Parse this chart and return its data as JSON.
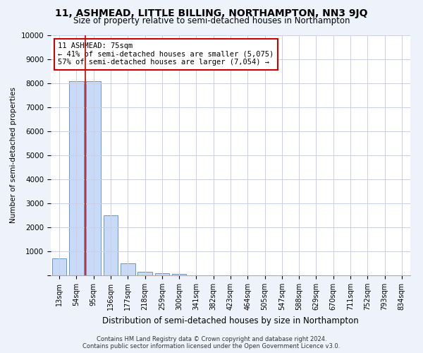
{
  "title": "11, ASHMEAD, LITTLE BILLING, NORTHAMPTON, NN3 9JQ",
  "subtitle": "Size of property relative to semi-detached houses in Northampton",
  "xlabel": "Distribution of semi-detached houses by size in Northampton",
  "ylabel": "Number of semi-detached properties",
  "categories": [
    "13sqm",
    "54sqm",
    "95sqm",
    "136sqm",
    "177sqm",
    "218sqm",
    "259sqm",
    "300sqm",
    "341sqm",
    "382sqm",
    "423sqm",
    "464sqm",
    "505sqm",
    "547sqm",
    "588sqm",
    "629sqm",
    "670sqm",
    "711sqm",
    "752sqm",
    "793sqm",
    "834sqm"
  ],
  "values": [
    700,
    8100,
    8100,
    2500,
    500,
    150,
    100,
    50,
    0,
    0,
    0,
    0,
    0,
    0,
    0,
    0,
    0,
    0,
    0,
    0,
    0
  ],
  "bar_color": "#c9daf8",
  "bar_edge_color": "#6699cc",
  "vline_x": 1.5,
  "vline_color": "#cc0000",
  "annotation_text": "11 ASHMEAD: 75sqm\n← 41% of semi-detached houses are smaller (5,075)\n57% of semi-detached houses are larger (7,054) →",
  "annotation_box_color": "#ffffff",
  "annotation_box_edge": "#cc0000",
  "ylim": [
    0,
    10000
  ],
  "yticks": [
    0,
    1000,
    2000,
    3000,
    4000,
    5000,
    6000,
    7000,
    8000,
    9000,
    10000
  ],
  "footer_line1": "Contains HM Land Registry data © Crown copyright and database right 2024.",
  "footer_line2": "Contains public sector information licensed under the Open Government Licence v3.0.",
  "bg_color": "#eef2fb",
  "plot_bg_color": "#ffffff",
  "grid_color": "#c8d0e8"
}
